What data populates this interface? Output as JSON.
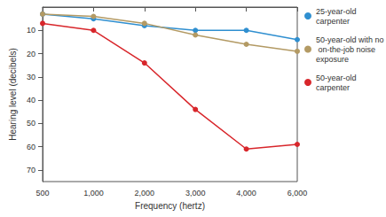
{
  "chart_data": {
    "type": "line",
    "x_label": "Frequency (hertz)",
    "y_label": "Hearing level (decibels)",
    "categories": [
      "500",
      "1,000",
      "2,000",
      "3,000",
      "4,000",
      "6,000"
    ],
    "series": [
      {
        "name": "25-year-old carpenter",
        "color": "#2f8fd0",
        "values": [
          3,
          5,
          8,
          10,
          10,
          14
        ]
      },
      {
        "name": "50-year-old with no on-the-job noise exposure",
        "color": "#b39a64",
        "values": [
          3,
          4,
          7,
          12,
          16,
          19
        ]
      },
      {
        "name": "50-year-old carpenter",
        "color": "#d8262b",
        "values": [
          7,
          10,
          24,
          44,
          61,
          59
        ]
      }
    ],
    "ylim": [
      75,
      0
    ],
    "yticks": [
      10,
      20,
      30,
      40,
      50,
      60,
      70
    ],
    "grid": false,
    "legend": "right",
    "marker": "circle"
  }
}
